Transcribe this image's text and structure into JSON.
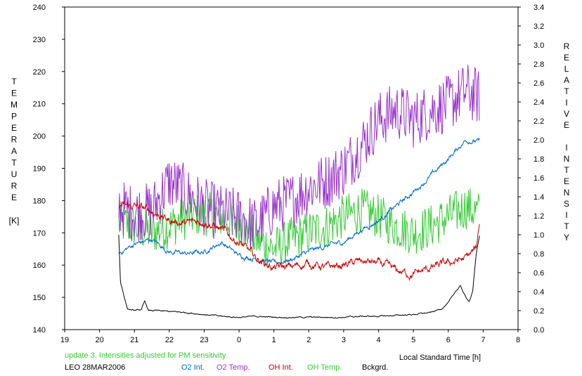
{
  "chart_data": {
    "type": "line",
    "xlabel": "Local Standard Time [h]",
    "ylabel_left_letters": [
      "T",
      "E",
      "M",
      "P",
      "E",
      "R",
      "A",
      "T",
      "U",
      "R",
      "E",
      "",
      "[K]"
    ],
    "ylabel_right_letters": [
      "R",
      "E",
      "L",
      "A",
      "T",
      "I",
      "V",
      "E",
      "",
      "I",
      "N",
      "T",
      "E",
      "N",
      "S",
      "I",
      "T",
      "Y"
    ],
    "x_ticks": [
      "19",
      "20",
      "21",
      "22",
      "23",
      "0",
      "1",
      "2",
      "3",
      "4",
      "5",
      "6",
      "7",
      "8"
    ],
    "x_range_hours": [
      19,
      32
    ],
    "y_left_ticks": [
      "140",
      "150",
      "160",
      "170",
      "180",
      "190",
      "200",
      "210",
      "220",
      "230",
      "240"
    ],
    "y_left_range": [
      140,
      240
    ],
    "y_right_ticks": [
      "0.0",
      "0.2",
      "0.4",
      "0.6",
      "0.8",
      "1.0",
      "1.2",
      "1.4",
      "1.6",
      "1.8",
      "2.0",
      "2.2",
      "2.4",
      "2.6",
      "2.8",
      "3.0",
      "3.2",
      "3.4"
    ],
    "y_right_range": [
      0,
      3.4
    ],
    "note": "update 3. Intensities adjusted for PM sensitivity",
    "station": "LEO 28MAR2006",
    "series": [
      {
        "name": "O2 Int.",
        "axis": "right",
        "color": "#0066cc",
        "key_x": [
          20.55,
          21,
          21.5,
          22,
          22.5,
          23,
          23.5,
          24,
          24.5,
          25,
          25.5,
          26,
          26.5,
          27,
          27.5,
          28,
          28.5,
          29,
          29.5,
          30,
          30.5,
          30.9
        ],
        "key_y": [
          0.8,
          0.9,
          0.95,
          0.82,
          0.8,
          0.82,
          0.92,
          0.78,
          0.75,
          0.7,
          0.74,
          0.82,
          0.88,
          0.92,
          1.05,
          1.15,
          1.3,
          1.45,
          1.62,
          1.8,
          2.0,
          1.98
        ]
      },
      {
        "name": "O2 Temp.",
        "axis": "left",
        "color": "#9933cc",
        "key_x": [
          20.55,
          21,
          21.5,
          22,
          22.5,
          23,
          23.5,
          24,
          24.5,
          25,
          25.5,
          26,
          26.5,
          27,
          27.5,
          28,
          28.5,
          29,
          29.5,
          30,
          30.5,
          30.9
        ],
        "key_y": [
          178,
          176,
          177,
          186,
          182,
          178,
          176,
          175,
          172,
          178,
          180,
          184,
          186,
          190,
          197,
          205,
          208,
          205,
          208,
          210,
          214,
          212
        ]
      },
      {
        "name": "OH Int.",
        "axis": "right",
        "color": "#cc0000",
        "key_x": [
          20.55,
          21,
          21.5,
          22,
          22.5,
          23,
          23.5,
          24,
          24.5,
          25,
          25.5,
          26,
          26.5,
          27,
          27.5,
          28,
          28.5,
          29,
          29.5,
          30,
          30.5,
          30.8,
          30.9
        ],
        "key_y": [
          1.3,
          1.3,
          1.25,
          1.15,
          1.12,
          1.15,
          1.05,
          0.92,
          0.75,
          0.65,
          0.66,
          0.7,
          0.65,
          0.68,
          0.72,
          0.7,
          0.62,
          0.58,
          0.65,
          0.7,
          0.75,
          0.85,
          1.15
        ]
      },
      {
        "name": "OH Temp.",
        "axis": "left",
        "color": "#33cc33",
        "key_x": [
          20.55,
          21,
          21.5,
          22,
          22.5,
          23,
          23.5,
          24,
          24.5,
          25,
          25.5,
          26,
          26.5,
          27,
          27.5,
          28,
          28.5,
          29,
          29.5,
          30,
          30.5,
          30.9
        ],
        "key_y": [
          173,
          172,
          170,
          172,
          175,
          176,
          175,
          173,
          168,
          165,
          168,
          170,
          172,
          175,
          177,
          175,
          172,
          170,
          172,
          175,
          178,
          176
        ]
      },
      {
        "name": "Bckgrd.",
        "axis": "right",
        "color": "#000000",
        "key_x": [
          20.55,
          20.6,
          20.8,
          21,
          21.2,
          21.3,
          21.4,
          21.6,
          22,
          22.5,
          23,
          23.5,
          24,
          24.5,
          25,
          25.5,
          26,
          26.5,
          27,
          27.5,
          28,
          28.5,
          29,
          29.5,
          29.8,
          30,
          30.2,
          30.35,
          30.5,
          30.6,
          30.7,
          30.8,
          30.9
        ],
        "key_y": [
          1.0,
          0.5,
          0.22,
          0.2,
          0.21,
          0.3,
          0.2,
          0.2,
          0.19,
          0.18,
          0.16,
          0.14,
          0.13,
          0.14,
          0.13,
          0.13,
          0.13,
          0.13,
          0.13,
          0.14,
          0.14,
          0.15,
          0.16,
          0.18,
          0.22,
          0.28,
          0.4,
          0.46,
          0.34,
          0.3,
          0.4,
          0.8,
          1.0
        ]
      }
    ]
  }
}
